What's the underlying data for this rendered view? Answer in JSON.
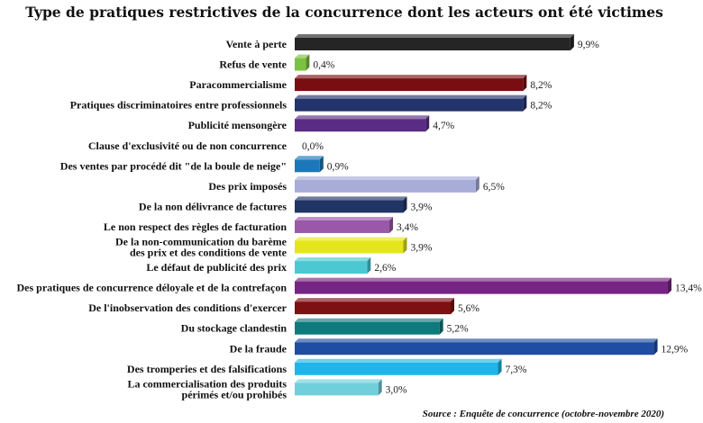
{
  "chart_data": {
    "type": "bar",
    "orientation": "horizontal",
    "title": "Type de pratiques restrictives de la concurrence dont les acteurs ont été victimes",
    "source": "Source : Enquête de concurrence (octobre-novembre 2020)",
    "value_suffix": "%",
    "xlim": [
      0,
      14
    ],
    "grid": false,
    "legend": "none",
    "categories": [
      [
        "Vente à perte"
      ],
      [
        "Refus de vente"
      ],
      [
        "Paracommercialisme"
      ],
      [
        "Pratiques discriminatoires entre professionnels"
      ],
      [
        "Publicité mensongère"
      ],
      [
        "Clause d'exclusivité ou de non concurrence"
      ],
      [
        "Des ventes par procédé dit \"de la boule de neige\""
      ],
      [
        "Des prix imposés"
      ],
      [
        "De la non délivrance de factures"
      ],
      [
        "Le non respect des règles de facturation"
      ],
      [
        "De la non-communication du barème",
        "des prix et des conditions de vente"
      ],
      [
        "Le défaut de publicité des prix"
      ],
      [
        "Des pratiques de concurrence déloyale et de la contrefaçon"
      ],
      [
        "De l'inobservation des conditions d'exercer"
      ],
      [
        "Du stockage clandestin"
      ],
      [
        "De la fraude"
      ],
      [
        "Des tromperies et des falsifications"
      ],
      [
        "La commercialisation des produits",
        "périmés et/ou prohibés"
      ]
    ],
    "value_labels": [
      "9,9%",
      "0,4%",
      "8,2%",
      "8,2%",
      "4,7%",
      "0,0%",
      "0,9%",
      "6,5%",
      "3,9%",
      "3,4%",
      "3,9%",
      "2,6%",
      "13,4%",
      "5,6%",
      "5,2%",
      "12,9%",
      "7,3%",
      "3,0%"
    ],
    "values": [
      9.9,
      0.4,
      8.2,
      8.2,
      4.7,
      0.0,
      0.9,
      6.5,
      3.9,
      3.4,
      3.9,
      2.6,
      13.4,
      5.6,
      5.2,
      12.9,
      7.3,
      3.0
    ],
    "colors": [
      "#252525",
      "#7cc242",
      "#7a0d12",
      "#23336b",
      "#5a2c86",
      "#888888",
      "#1c78b8",
      "#a8acd8",
      "#213466",
      "#9a58a8",
      "#e4e61c",
      "#4cc8d2",
      "#772584",
      "#7e0f12",
      "#0d7b7b",
      "#1f4da3",
      "#20b5e8",
      "#6fd0dc"
    ]
  }
}
